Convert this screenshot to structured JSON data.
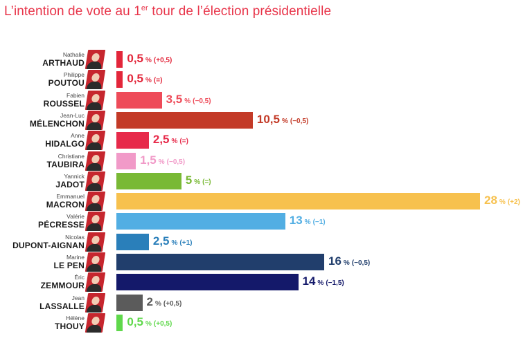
{
  "title": {
    "text": "L’intention de vote au 1",
    "superscript": "er",
    "text_after": " tour de l’élection présidentielle"
  },
  "chart_data": {
    "type": "bar",
    "orientation": "horizontal",
    "title": "L’intention de vote au 1er tour de l’élection présidentielle",
    "unit": "%",
    "xlim": [
      0,
      28
    ],
    "grid": false,
    "legend": "none",
    "candidates": [
      {
        "first": "Nathalie",
        "last": "ARTHAUD",
        "value": 0.5,
        "value_label": "0,5",
        "change": "(+0,5)",
        "color": "#e3263a"
      },
      {
        "first": "Philippe",
        "last": "POUTOU",
        "value": 0.5,
        "value_label": "0,5",
        "change": "(=)",
        "color": "#e3263a"
      },
      {
        "first": "Fabien",
        "last": "ROUSSEL",
        "value": 3.5,
        "value_label": "3,5",
        "change": "(−0,5)",
        "color": "#ee4b59"
      },
      {
        "first": "Jean-Luc",
        "last": "MÉLENCHON",
        "value": 10.5,
        "value_label": "10,5",
        "change": "(−0,5)",
        "color": "#c33a27"
      },
      {
        "first": "Anne",
        "last": "HIDALGO",
        "value": 2.5,
        "value_label": "2,5",
        "change": "(=)",
        "color": "#e72a4a"
      },
      {
        "first": "Christiane",
        "last": "TAUBIRA",
        "value": 1.5,
        "value_label": "1,5",
        "change": "(−0,5)",
        "color": "#f19ac8"
      },
      {
        "first": "Yannick",
        "last": "JADOT",
        "value": 5,
        "value_label": "5",
        "change": "(=)",
        "color": "#79b935"
      },
      {
        "first": "Emmanuel",
        "last": "MACRON",
        "value": 28,
        "value_label": "28",
        "change": "(+2)",
        "color": "#f7c14e"
      },
      {
        "first": "Valérie",
        "last": "PÉCRESSE",
        "value": 13,
        "value_label": "13",
        "change": "(−1)",
        "color": "#52aee3"
      },
      {
        "first": "Nicolas",
        "last": "DUPONT-AIGNAN",
        "value": 2.5,
        "value_label": "2,5",
        "change": "(+1)",
        "color": "#2a7fba"
      },
      {
        "first": "Marine",
        "last": "LE PEN",
        "value": 16,
        "value_label": "16",
        "change": "(−0,5)",
        "color": "#213e6c"
      },
      {
        "first": "Éric",
        "last": "ZEMMOUR",
        "value": 14,
        "value_label": "14",
        "change": "(−1,5)",
        "color": "#14196a"
      },
      {
        "first": "Jean",
        "last": "LASSALLE",
        "value": 2,
        "value_label": "2",
        "change": "(+0,5)",
        "color": "#5b5b5b"
      },
      {
        "first": "Hélène",
        "last": "THOUY",
        "value": 0.5,
        "value_label": "0,5",
        "change": "(+0,5)",
        "color": "#5fd84b"
      }
    ]
  },
  "colors": {
    "title": "#e8354a",
    "photo_bg": "#c6262e"
  }
}
